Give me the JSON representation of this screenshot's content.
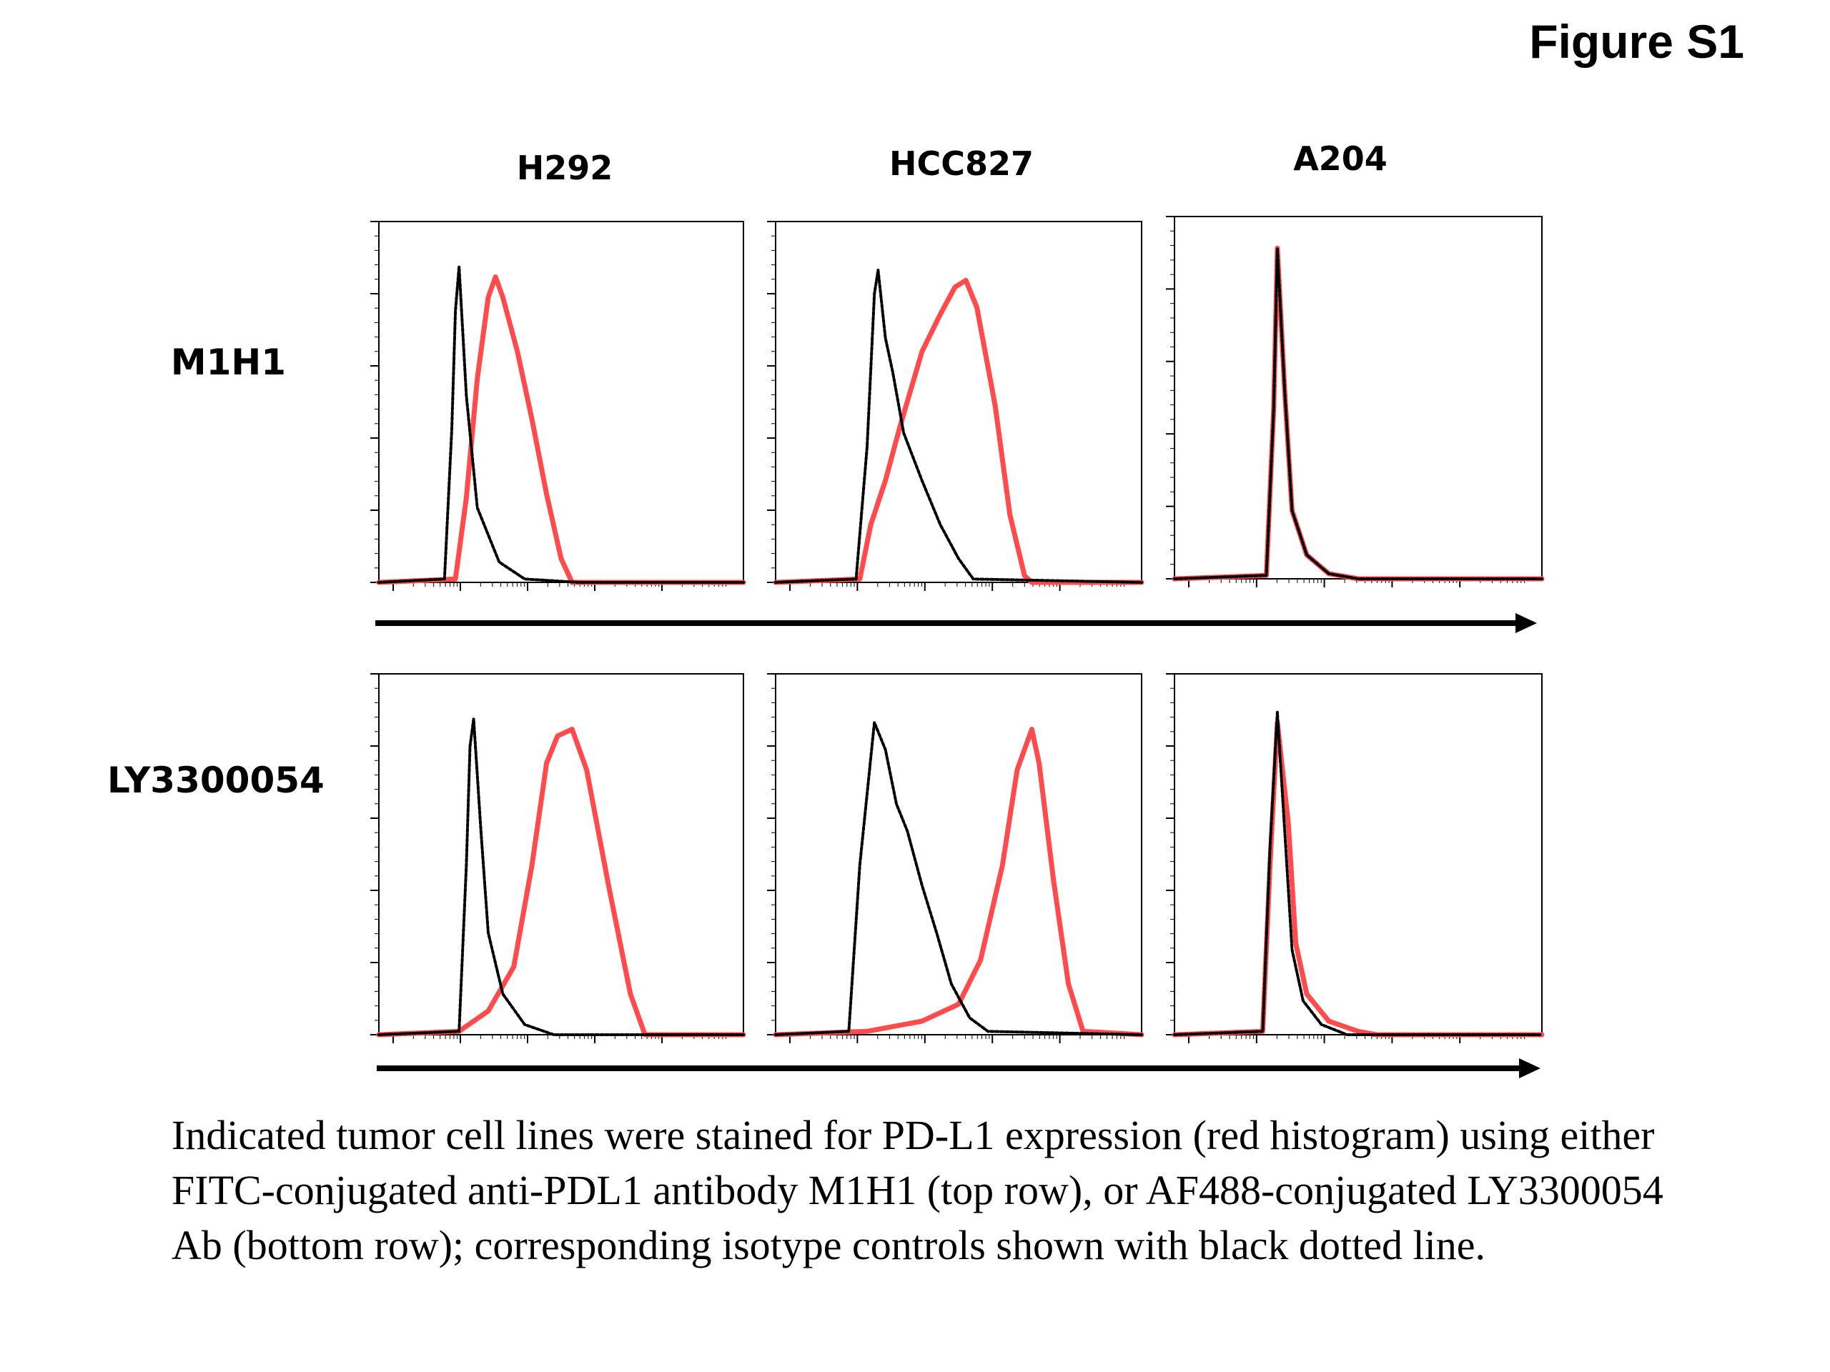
{
  "figure_label": "Figure S1",
  "columns": [
    "H292",
    "HCC827",
    "A204"
  ],
  "rows": [
    "M1H1",
    "LY3300054"
  ],
  "caption": "Indicated tumor cell lines were stained for PD-L1 expression (red histogram) using either FITC-conjugated anti-PDL1 antibody M1H1 (top row), or AF488-conjugated LY3300054 Ab (bottom row); corresponding isotype controls shown with black dotted line.",
  "colors": {
    "stain": "#ff4b4b",
    "isotype": "#000000"
  },
  "chart_data": [
    {
      "type": "area",
      "panel": "H292 / M1H1",
      "x_scale": "log",
      "series": [
        {
          "role": "stain",
          "color": "#ff4b4b",
          "points": [
            [
              0.0,
              0
            ],
            [
              0.21,
              0.01
            ],
            [
              0.24,
              0.25
            ],
            [
              0.27,
              0.6
            ],
            [
              0.3,
              0.84
            ],
            [
              0.32,
              0.9
            ],
            [
              0.34,
              0.84
            ],
            [
              0.38,
              0.68
            ],
            [
              0.42,
              0.48
            ],
            [
              0.46,
              0.26
            ],
            [
              0.5,
              0.07
            ],
            [
              0.53,
              0
            ],
            [
              1.0,
              0
            ]
          ]
        },
        {
          "role": "isotype",
          "color": "#000000",
          "points": [
            [
              0.0,
              0
            ],
            [
              0.18,
              0.01
            ],
            [
              0.2,
              0.45
            ],
            [
              0.21,
              0.8
            ],
            [
              0.22,
              0.93
            ],
            [
              0.24,
              0.55
            ],
            [
              0.27,
              0.22
            ],
            [
              0.33,
              0.06
            ],
            [
              0.4,
              0.01
            ],
            [
              0.55,
              0
            ],
            [
              1.0,
              0
            ]
          ]
        }
      ]
    },
    {
      "type": "area",
      "panel": "HCC827 / M1H1",
      "x_scale": "log",
      "series": [
        {
          "role": "stain",
          "color": "#ff4b4b",
          "points": [
            [
              0.0,
              0
            ],
            [
              0.23,
              0.01
            ],
            [
              0.26,
              0.17
            ],
            [
              0.3,
              0.3
            ],
            [
              0.34,
              0.46
            ],
            [
              0.4,
              0.68
            ],
            [
              0.45,
              0.79
            ],
            [
              0.49,
              0.87
            ],
            [
              0.52,
              0.89
            ],
            [
              0.55,
              0.81
            ],
            [
              0.6,
              0.52
            ],
            [
              0.64,
              0.2
            ],
            [
              0.68,
              0.02
            ],
            [
              0.7,
              0
            ],
            [
              1.0,
              0
            ]
          ]
        },
        {
          "role": "isotype",
          "color": "#000000",
          "points": [
            [
              0.0,
              0
            ],
            [
              0.22,
              0.01
            ],
            [
              0.25,
              0.4
            ],
            [
              0.27,
              0.85
            ],
            [
              0.28,
              0.92
            ],
            [
              0.3,
              0.72
            ],
            [
              0.32,
              0.62
            ],
            [
              0.35,
              0.44
            ],
            [
              0.4,
              0.3
            ],
            [
              0.45,
              0.17
            ],
            [
              0.5,
              0.07
            ],
            [
              0.54,
              0.01
            ],
            [
              1.0,
              0
            ]
          ]
        }
      ]
    },
    {
      "type": "area",
      "panel": "A204 / M1H1",
      "x_scale": "log",
      "series": [
        {
          "role": "stain",
          "color": "#ff4b4b",
          "points": [
            [
              0.0,
              0
            ],
            [
              0.25,
              0.01
            ],
            [
              0.27,
              0.5
            ],
            [
              0.28,
              0.97
            ],
            [
              0.3,
              0.55
            ],
            [
              0.32,
              0.2
            ],
            [
              0.36,
              0.07
            ],
            [
              0.42,
              0.015
            ],
            [
              0.5,
              0
            ],
            [
              1.0,
              0
            ]
          ]
        },
        {
          "role": "isotype",
          "color": "#000000",
          "points": [
            [
              0.0,
              0
            ],
            [
              0.25,
              0.01
            ],
            [
              0.27,
              0.5
            ],
            [
              0.28,
              0.97
            ],
            [
              0.3,
              0.55
            ],
            [
              0.32,
              0.2
            ],
            [
              0.36,
              0.07
            ],
            [
              0.42,
              0.015
            ],
            [
              0.5,
              0
            ],
            [
              1.0,
              0
            ]
          ]
        }
      ]
    },
    {
      "type": "area",
      "panel": "H292 / LY3300054",
      "x_scale": "log",
      "series": [
        {
          "role": "stain",
          "color": "#ff4b4b",
          "points": [
            [
              0.0,
              0
            ],
            [
              0.22,
              0.01
            ],
            [
              0.3,
              0.07
            ],
            [
              0.37,
              0.2
            ],
            [
              0.42,
              0.5
            ],
            [
              0.46,
              0.8
            ],
            [
              0.49,
              0.88
            ],
            [
              0.53,
              0.9
            ],
            [
              0.57,
              0.78
            ],
            [
              0.63,
              0.44
            ],
            [
              0.69,
              0.12
            ],
            [
              0.73,
              0
            ],
            [
              1.0,
              0
            ]
          ]
        },
        {
          "role": "isotype",
          "color": "#000000",
          "points": [
            [
              0.0,
              0
            ],
            [
              0.22,
              0.01
            ],
            [
              0.24,
              0.5
            ],
            [
              0.25,
              0.85
            ],
            [
              0.26,
              0.93
            ],
            [
              0.28,
              0.6
            ],
            [
              0.3,
              0.3
            ],
            [
              0.34,
              0.12
            ],
            [
              0.4,
              0.03
            ],
            [
              0.48,
              0
            ],
            [
              1.0,
              0
            ]
          ]
        }
      ]
    },
    {
      "type": "area",
      "panel": "HCC827 / LY3300054",
      "x_scale": "log",
      "series": [
        {
          "role": "stain",
          "color": "#ff4b4b",
          "points": [
            [
              0.0,
              0
            ],
            [
              0.25,
              0.01
            ],
            [
              0.4,
              0.04
            ],
            [
              0.5,
              0.09
            ],
            [
              0.56,
              0.22
            ],
            [
              0.62,
              0.5
            ],
            [
              0.66,
              0.78
            ],
            [
              0.7,
              0.9
            ],
            [
              0.72,
              0.8
            ],
            [
              0.76,
              0.45
            ],
            [
              0.8,
              0.15
            ],
            [
              0.84,
              0.01
            ],
            [
              1.0,
              0
            ]
          ]
        },
        {
          "role": "isotype",
          "color": "#000000",
          "points": [
            [
              0.0,
              0
            ],
            [
              0.2,
              0.01
            ],
            [
              0.23,
              0.5
            ],
            [
              0.27,
              0.92
            ],
            [
              0.3,
              0.84
            ],
            [
              0.33,
              0.68
            ],
            [
              0.36,
              0.6
            ],
            [
              0.4,
              0.44
            ],
            [
              0.44,
              0.3
            ],
            [
              0.48,
              0.15
            ],
            [
              0.53,
              0.05
            ],
            [
              0.58,
              0.01
            ],
            [
              1.0,
              0
            ]
          ]
        }
      ]
    },
    {
      "type": "area",
      "panel": "A204 / LY3300054",
      "x_scale": "log",
      "series": [
        {
          "role": "stain",
          "color": "#ff4b4b",
          "points": [
            [
              0.0,
              0
            ],
            [
              0.24,
              0.01
            ],
            [
              0.26,
              0.5
            ],
            [
              0.28,
              0.92
            ],
            [
              0.31,
              0.62
            ],
            [
              0.33,
              0.27
            ],
            [
              0.36,
              0.12
            ],
            [
              0.42,
              0.04
            ],
            [
              0.5,
              0.01
            ],
            [
              0.55,
              0
            ],
            [
              1.0,
              0
            ]
          ]
        },
        {
          "role": "isotype",
          "color": "#000000",
          "points": [
            [
              0.0,
              0
            ],
            [
              0.24,
              0.01
            ],
            [
              0.26,
              0.55
            ],
            [
              0.28,
              0.95
            ],
            [
              0.3,
              0.6
            ],
            [
              0.32,
              0.25
            ],
            [
              0.35,
              0.1
            ],
            [
              0.4,
              0.03
            ],
            [
              0.47,
              0
            ],
            [
              1.0,
              0
            ]
          ]
        }
      ]
    }
  ]
}
